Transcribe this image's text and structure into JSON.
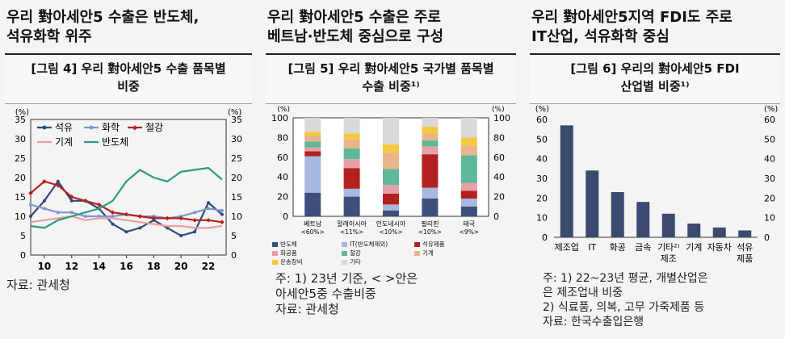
{
  "panels": {
    "p1": {
      "heading": "우리 對아세안5 수출은 반도체,\n석유화학 위주",
      "figure_title": "[그림 4] 우리 對아세안5 수출 품목별\n비중",
      "source": "자료: 관세청"
    },
    "p2": {
      "heading": "우리 對아세안5 수출은 주로\n베트남·반도체 중심으로 구성",
      "figure_title": "[그림 5] 우리 對아세안5 국가별 품목별\n수출 비중¹⁾",
      "notes": "주: 1) 23년 기준, < >안은\n      아세안5중 수출비중\n자료: 관세청"
    },
    "p3": {
      "heading": "우리 對아세안5지역 FDI도 주로\nIT산업, 석유화학 중심",
      "figure_title": "[그림 6] 우리의 對아세안5 FDI\n산업별 비중¹⁾",
      "notes": "주: 1) 22~23년 평균, 개별산업은\n       은 제조업내 비중\n     2) 식료품, 의복, 고무 가죽제품 등\n자료: 한국수출입은행"
    }
  },
  "chart_data": [
    {
      "type": "line",
      "unit_left": "(%)",
      "unit_right": "(%)",
      "x": [
        9,
        10,
        11,
        12,
        13,
        14,
        15,
        16,
        17,
        18,
        19,
        20,
        21,
        22,
        23
      ],
      "x_ticks": [
        "10",
        "12",
        "14",
        "16",
        "18",
        "20",
        "22"
      ],
      "ylim": [
        0,
        35
      ],
      "y_ticks": [
        0,
        5,
        10,
        15,
        20,
        25,
        30,
        35
      ],
      "series": [
        {
          "name": "석유",
          "color": "#2f4a7a",
          "values": [
            10,
            14,
            19,
            14,
            14,
            12,
            8,
            6,
            7,
            9,
            7,
            5,
            6,
            13.5,
            10.5
          ]
        },
        {
          "name": "화학",
          "color": "#7f95cc",
          "values": [
            13,
            12,
            11,
            11,
            10,
            10,
            10,
            10.5,
            10,
            10,
            9.5,
            10,
            11,
            12,
            11.5
          ]
        },
        {
          "name": "철강",
          "color": "#b3211e",
          "values": [
            16,
            19,
            18,
            15,
            14,
            13,
            11,
            10.5,
            10,
            9.5,
            9.5,
            9.5,
            9,
            9,
            8.5
          ]
        },
        {
          "name": "기계",
          "color": "#e8a0a0",
          "values": [
            8.5,
            9,
            9.5,
            10,
            9,
            9.5,
            9.5,
            9,
            8.5,
            8,
            7.5,
            7.5,
            7,
            7,
            7.5
          ]
        },
        {
          "name": "반도체",
          "color": "#2a9a80",
          "values": [
            7.5,
            7,
            9,
            10,
            11,
            12,
            14,
            19,
            22,
            20,
            19,
            21.5,
            22,
            22.5,
            19.5
          ]
        }
      ]
    },
    {
      "type": "bar",
      "stacked": true,
      "unit_left": "(%)",
      "unit_right": "(%)",
      "categories": [
        "베트남",
        "말레이시아",
        "인도네시아",
        "필리핀",
        "태국"
      ],
      "category_shares": [
        "<60%>",
        "<11%>",
        "<10%>",
        "<10%>",
        "<9%>"
      ],
      "ylim": [
        0,
        100
      ],
      "y_ticks": [
        0,
        20,
        40,
        60,
        80,
        100
      ],
      "series": [
        {
          "name": "반도체",
          "color": "#3b4f7a",
          "values": [
            24,
            20,
            6,
            18,
            10
          ]
        },
        {
          "name": "IT(반도체제외)",
          "color": "#a8b8e0",
          "values": [
            37,
            8,
            6,
            11,
            8
          ]
        },
        {
          "name": "석유제품",
          "color": "#b3211e",
          "values": [
            5,
            21,
            11,
            34,
            8
          ]
        },
        {
          "name": "화공품",
          "color": "#e8a0a8",
          "values": [
            4,
            9,
            9,
            8,
            8
          ]
        },
        {
          "name": "철강",
          "color": "#5fb79a",
          "values": [
            6,
            11,
            16,
            6,
            28
          ]
        },
        {
          "name": "기계",
          "color": "#e8b48a",
          "values": [
            6,
            9,
            17,
            7,
            10
          ]
        },
        {
          "name": "운송장비",
          "color": "#f5c842",
          "values": [
            4,
            6,
            8,
            7,
            8
          ]
        },
        {
          "name": "기타",
          "color": "#d9d9d9",
          "values": [
            14,
            16,
            27,
            9,
            20
          ]
        }
      ]
    },
    {
      "type": "bar",
      "unit_left": "(%)",
      "unit_right": "(%)",
      "categories": [
        "제조업",
        "IT",
        "화공",
        "금속",
        "기타²⁾",
        "기계",
        "자동차",
        "석유"
      ],
      "category_sublabels": [
        "",
        "",
        "",
        "",
        "제조",
        "",
        "",
        "제품"
      ],
      "values": [
        57,
        34,
        23,
        18,
        12,
        7,
        5,
        3.5
      ],
      "color": "#3b4a6e",
      "ylim": [
        0,
        60
      ],
      "y_ticks": [
        0,
        10,
        20,
        30,
        40,
        50,
        60
      ]
    }
  ]
}
